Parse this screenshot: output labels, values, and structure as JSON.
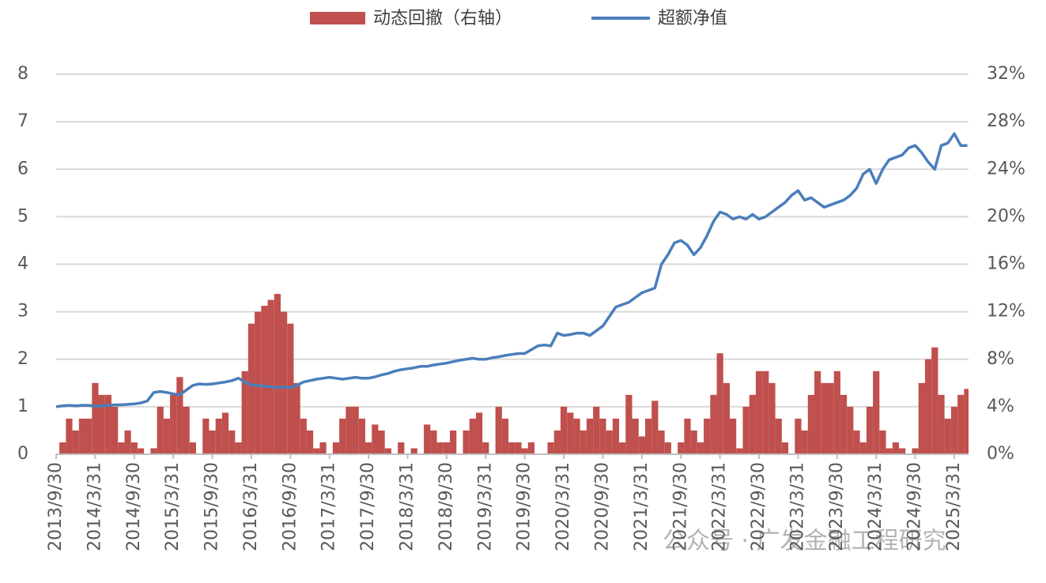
{
  "chart_data": {
    "type": "bar",
    "watermark": "公众号 · 广发金融工程研究",
    "categories": [
      "2013/9/30",
      null,
      null,
      null,
      null,
      null,
      "2014/3/31",
      null,
      null,
      null,
      null,
      null,
      "2014/9/30",
      null,
      null,
      null,
      null,
      null,
      "2015/3/31",
      null,
      null,
      null,
      null,
      null,
      "2015/9/30",
      null,
      null,
      null,
      null,
      null,
      "2016/3/31",
      null,
      null,
      null,
      null,
      null,
      "2016/9/30",
      null,
      null,
      null,
      null,
      null,
      "2017/3/31",
      null,
      null,
      null,
      null,
      null,
      "2017/9/30",
      null,
      null,
      null,
      null,
      null,
      "2018/3/31",
      null,
      null,
      null,
      null,
      null,
      "2018/9/30",
      null,
      null,
      null,
      null,
      null,
      "2019/3/31",
      null,
      null,
      null,
      null,
      null,
      "2019/9/30",
      null,
      null,
      null,
      null,
      null,
      "2020/3/31",
      null,
      null,
      null,
      null,
      null,
      "2020/9/30",
      null,
      null,
      null,
      null,
      null,
      "2021/3/31",
      null,
      null,
      null,
      null,
      null,
      "2021/9/30",
      null,
      null,
      null,
      null,
      null,
      "2022/3/31",
      null,
      null,
      null,
      null,
      null,
      "2022/9/30",
      null,
      null,
      null,
      null,
      null,
      "2023/3/31",
      null,
      null,
      null,
      null,
      null,
      "2023/9/30",
      null,
      null,
      null,
      null,
      null,
      "2024/3/31",
      null,
      null,
      null,
      null,
      null,
      "2024/9/30",
      null,
      null,
      null,
      null,
      null,
      "2025/3/31",
      null,
      null
    ],
    "series": [
      {
        "name": "动态回撤（右轴）",
        "type": "bar",
        "axis": "y2",
        "color": "#c0504d",
        "values": [
          0,
          1,
          3,
          2,
          3,
          3,
          6,
          5,
          5,
          4,
          1,
          2,
          1,
          0.5,
          0,
          0.5,
          4,
          3,
          5,
          6.5,
          4,
          1,
          0,
          3,
          2,
          3,
          3.5,
          2,
          1,
          7,
          11,
          12,
          12.5,
          13,
          13.5,
          12,
          11,
          6,
          3,
          2,
          0.5,
          1,
          0,
          1,
          3,
          4,
          4,
          3,
          1,
          2.5,
          2,
          0.5,
          0,
          1,
          0,
          0.5,
          0,
          2.5,
          2,
          1,
          1,
          2,
          0,
          2,
          3,
          3.5,
          1,
          0,
          4,
          3,
          1,
          1,
          0.5,
          1,
          0,
          0,
          1,
          2,
          4,
          3.5,
          3,
          2,
          3,
          4,
          3,
          2,
          3,
          1,
          5,
          3,
          1.5,
          3,
          4.5,
          2,
          1,
          0,
          1,
          3,
          2,
          1,
          3,
          5,
          8.5,
          6,
          3,
          0.5,
          4,
          5,
          7,
          7,
          6,
          3,
          1,
          0,
          3,
          2,
          5,
          7,
          6,
          6,
          7,
          5,
          4,
          2,
          1,
          4,
          7,
          2,
          0.5,
          1,
          0.5,
          0,
          0.5,
          6,
          8,
          9,
          5,
          3,
          4,
          5,
          5.5
        ]
      },
      {
        "name": "超额净值",
        "type": "line",
        "color": "#4a7ebb",
        "values": [
          1.0,
          1.02,
          1.03,
          1.02,
          1.03,
          1.03,
          1.01,
          1.02,
          1.03,
          1.04,
          1.04,
          1.05,
          1.06,
          1.08,
          1.12,
          1.3,
          1.32,
          1.3,
          1.27,
          1.25,
          1.35,
          1.45,
          1.48,
          1.47,
          1.48,
          1.5,
          1.52,
          1.55,
          1.6,
          1.52,
          1.46,
          1.45,
          1.43,
          1.42,
          1.4,
          1.42,
          1.4,
          1.45,
          1.52,
          1.55,
          1.58,
          1.6,
          1.62,
          1.6,
          1.58,
          1.6,
          1.62,
          1.6,
          1.6,
          1.63,
          1.67,
          1.7,
          1.75,
          1.78,
          1.8,
          1.82,
          1.85,
          1.85,
          1.88,
          1.9,
          1.92,
          1.95,
          1.98,
          2.0,
          2.02,
          2.0,
          2.0,
          2.03,
          2.05,
          2.08,
          2.1,
          2.12,
          2.12,
          2.2,
          2.28,
          2.3,
          2.28,
          2.55,
          2.5,
          2.52,
          2.55,
          2.55,
          2.5,
          2.6,
          2.7,
          2.9,
          3.1,
          3.15,
          3.2,
          3.3,
          3.4,
          3.45,
          3.5,
          4.0,
          4.2,
          4.45,
          4.5,
          4.4,
          4.2,
          4.35,
          4.6,
          4.9,
          5.1,
          5.05,
          4.95,
          5.0,
          4.95,
          5.05,
          4.95,
          5.0,
          5.1,
          5.2,
          5.3,
          5.45,
          5.55,
          5.35,
          5.4,
          5.3,
          5.2,
          5.25,
          5.3,
          5.35,
          5.45,
          5.6,
          5.9,
          6.0,
          5.7,
          6.0,
          6.2,
          6.25,
          6.3,
          6.45,
          6.5,
          6.35,
          6.15,
          6.0,
          6.5,
          6.55,
          6.75,
          6.5,
          6.5
        ]
      }
    ],
    "ylim": [
      0,
      8
    ],
    "yticks": [
      0,
      1,
      2,
      3,
      4,
      5,
      6,
      7,
      8
    ],
    "y2lim": [
      0,
      32
    ],
    "y2ticks": [
      {
        "value": 0,
        "label": "0%"
      },
      {
        "value": 4,
        "label": "4%"
      },
      {
        "value": 8,
        "label": "8%"
      },
      {
        "value": 12,
        "label": "12%"
      },
      {
        "value": 16,
        "label": "16%"
      },
      {
        "value": 20,
        "label": "20%"
      },
      {
        "value": 24,
        "label": "24%"
      },
      {
        "value": 28,
        "label": "28%"
      },
      {
        "value": 32,
        "label": "32%"
      }
    ],
    "grid": true,
    "legend": "top"
  }
}
